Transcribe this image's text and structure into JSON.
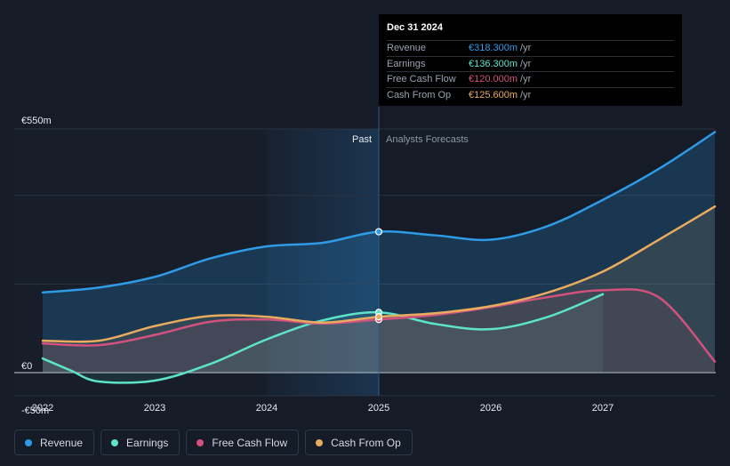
{
  "tooltip": {
    "date": "Dec 31 2024",
    "rows": [
      {
        "label": "Revenue",
        "value": "€318.300m",
        "unit": "/yr",
        "color": "#2f9be6"
      },
      {
        "label": "Earnings",
        "value": "€136.300m",
        "unit": "/yr",
        "color": "#5de3c8"
      },
      {
        "label": "Free Cash Flow",
        "value": "€120.000m",
        "unit": "/yr",
        "color": "#d2527f"
      },
      {
        "label": "Cash From Op",
        "value": "€125.600m",
        "unit": "/yr",
        "color": "#e8ac5f"
      }
    ]
  },
  "legend": [
    {
      "label": "Revenue",
      "color": "#2f9be6"
    },
    {
      "label": "Earnings",
      "color": "#5de3c8"
    },
    {
      "label": "Free Cash Flow",
      "color": "#d2527f"
    },
    {
      "label": "Cash From Op",
      "color": "#e8ac5f"
    }
  ],
  "chart_data": {
    "type": "line",
    "title": "",
    "xlabel": "",
    "ylabel": "",
    "currency": "EUR",
    "xlim": [
      2021.9,
      2028.0
    ],
    "ylim": [
      -50,
      550
    ],
    "y_axis_labels": [
      "€550m",
      "€0",
      "-€50m"
    ],
    "x_ticks": [
      2022,
      2023,
      2024,
      2025,
      2026,
      2027
    ],
    "x_tick_labels": [
      "2022",
      "2023",
      "2024",
      "2025",
      "2026",
      "2027"
    ],
    "divider_x": 2025,
    "highlight_start_x": 2024,
    "past_label": "Past",
    "forecast_label": "Analysts Forecasts",
    "series": [
      {
        "name": "Revenue",
        "color": "#2f9be6",
        "x": [
          2022,
          2022.5,
          2023,
          2023.5,
          2024,
          2024.5,
          2025,
          2025.5,
          2026,
          2026.5,
          2027,
          2027.5,
          2028
        ],
        "values": [
          181,
          192,
          216,
          258,
          285,
          293,
          318,
          310,
          300,
          330,
          390,
          460,
          543
        ]
      },
      {
        "name": "Earnings",
        "color": "#5de3c8",
        "x": [
          2022,
          2022.25,
          2022.5,
          2023,
          2023.5,
          2024,
          2024.5,
          2025,
          2025.5,
          2026,
          2026.5,
          2027
        ],
        "values": [
          32,
          5,
          -20,
          -18,
          20,
          75,
          118,
          136,
          110,
          98,
          125,
          177
        ]
      },
      {
        "name": "Free Cash Flow",
        "color": "#d2527f",
        "x": [
          2022,
          2022.5,
          2023,
          2023.5,
          2024,
          2024.5,
          2025,
          2025.5,
          2026,
          2026.5,
          2027,
          2027.5,
          2028
        ],
        "values": [
          66,
          62,
          85,
          115,
          120,
          111,
          120,
          130,
          148,
          170,
          186,
          170,
          25
        ]
      },
      {
        "name": "Cash From Op",
        "color": "#e8ac5f",
        "x": [
          2022,
          2022.5,
          2023,
          2023.5,
          2024,
          2024.5,
          2025,
          2025.5,
          2026,
          2026.5,
          2027,
          2027.5,
          2028
        ],
        "values": [
          72,
          72,
          105,
          128,
          126,
          113,
          126,
          134,
          150,
          180,
          228,
          300,
          375
        ]
      }
    ]
  }
}
